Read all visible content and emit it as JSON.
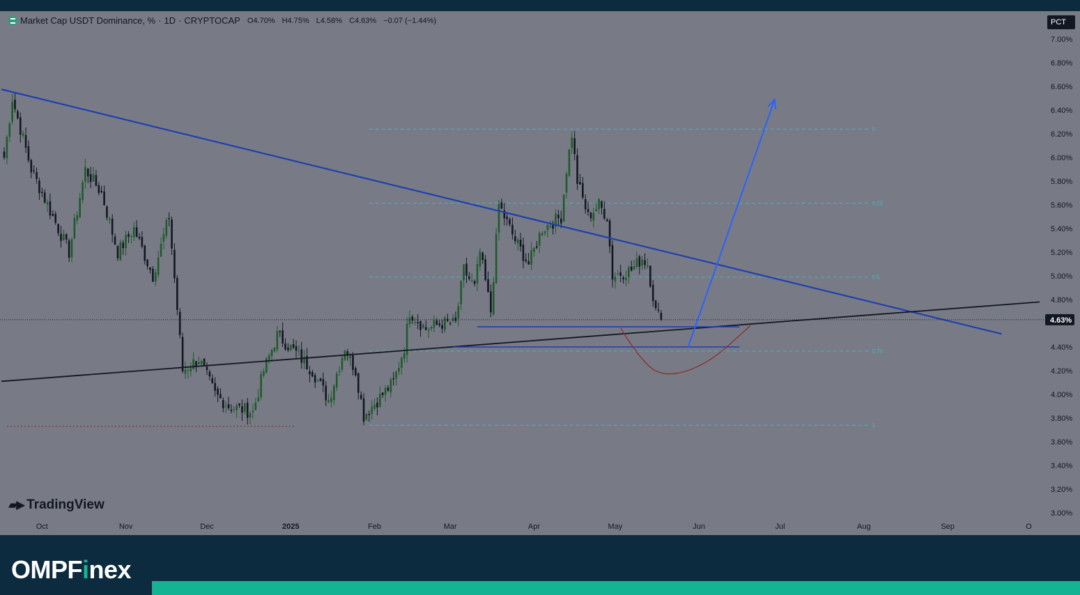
{
  "legend": {
    "symbol": "Market Cap USDT Dominance, %",
    "sep1": "·",
    "interval": "1D",
    "sep2": "·",
    "source": "CRYPTOCAP",
    "open": "O4.70%",
    "high": "H4.75%",
    "low": "L4.58%",
    "close": "C4.63%",
    "change": "−0.07 (−1.44%)"
  },
  "scale_button": "PCT",
  "watermark": "TradingView",
  "brand": {
    "part1": "OMPF",
    "part2": "i",
    "part3": "nex"
  },
  "colors": {
    "background": "#787b86",
    "up": "#1e5b2a",
    "down": "#131722",
    "trendline_blue": "#1e3fae",
    "trendline_black": "#131722",
    "fib": "#3fb6c8",
    "arrow": "#2962ff",
    "curve": "#8b2c2c",
    "support_dots": "#8b2c2c",
    "footer": "#0d2b3e",
    "accent": "#14b394"
  },
  "chart_data": {
    "type": "candlestick",
    "title": "Market Cap USDT Dominance, %",
    "interval": "1D",
    "ylim": [
      2.9,
      7.1
    ],
    "y_ticks": [
      "7.00%",
      "6.80%",
      "6.60%",
      "6.40%",
      "6.20%",
      "6.00%",
      "5.80%",
      "5.60%",
      "5.40%",
      "5.20%",
      "5.00%",
      "4.80%",
      "4.40%",
      "4.20%",
      "4.00%",
      "3.80%",
      "3.60%",
      "3.40%",
      "3.20%",
      "3.00%"
    ],
    "y_tick_values": [
      7.0,
      6.8,
      6.6,
      6.4,
      6.2,
      6.0,
      5.8,
      5.6,
      5.4,
      5.2,
      5.0,
      4.8,
      4.4,
      4.2,
      4.0,
      3.8,
      3.6,
      3.4,
      3.2,
      3.0
    ],
    "x_ticks": [
      "Oct",
      "Nov",
      "Dec",
      "2025",
      "Feb",
      "Mar",
      "Apr",
      "May",
      "Jun",
      "Jul",
      "Aug",
      "Sep",
      "O"
    ],
    "x_tick_days": [
      14,
      45,
      75,
      106,
      137,
      165,
      196,
      226,
      257,
      287,
      318,
      349,
      379
    ],
    "last_price": {
      "label": "4.63%",
      "value": 4.63
    },
    "keypoints": [
      [
        0,
        6.0
      ],
      [
        3,
        6.5
      ],
      [
        10,
        5.9
      ],
      [
        16,
        5.6
      ],
      [
        24,
        5.2
      ],
      [
        30,
        5.9
      ],
      [
        36,
        5.7
      ],
      [
        42,
        5.2
      ],
      [
        48,
        5.4
      ],
      [
        55,
        5.0
      ],
      [
        61,
        5.5
      ],
      [
        66,
        4.2
      ],
      [
        72,
        4.3
      ],
      [
        78,
        4.0
      ],
      [
        83,
        3.9
      ],
      [
        92,
        3.85
      ],
      [
        96,
        4.2
      ],
      [
        101,
        4.5
      ],
      [
        108,
        4.35
      ],
      [
        114,
        4.2
      ],
      [
        120,
        3.95
      ],
      [
        126,
        4.4
      ],
      [
        130,
        4.2
      ],
      [
        133,
        3.82
      ],
      [
        140,
        4.0
      ],
      [
        144,
        4.1
      ],
      [
        148,
        4.4
      ],
      [
        150,
        4.7
      ],
      [
        156,
        4.55
      ],
      [
        162,
        4.6
      ],
      [
        167,
        4.6
      ],
      [
        170,
        5.05
      ],
      [
        174,
        4.9
      ],
      [
        176,
        5.2
      ],
      [
        180,
        4.7
      ],
      [
        183,
        5.6
      ],
      [
        189,
        5.3
      ],
      [
        194,
        5.1
      ],
      [
        199,
        5.4
      ],
      [
        206,
        5.5
      ],
      [
        208,
        5.9
      ],
      [
        210,
        6.2
      ],
      [
        212,
        5.8
      ],
      [
        216,
        5.5
      ],
      [
        220,
        5.6
      ],
      [
        223,
        5.5
      ],
      [
        225,
        5.0
      ],
      [
        232,
        5.05
      ],
      [
        236,
        5.15
      ],
      [
        238,
        5.1
      ],
      [
        241,
        4.7
      ],
      [
        243,
        4.63
      ]
    ],
    "trendlines": [
      {
        "name": "descending-resistance",
        "from": [
          -1,
          6.575
        ],
        "to": [
          369,
          4.51
        ]
      },
      {
        "name": "ascending-support",
        "from": [
          -1,
          4.11
        ],
        "to": [
          383,
          4.78
        ]
      }
    ],
    "horizontal_levels": [
      {
        "name": "range-top",
        "value": 4.57,
        "from_day": 175,
        "to_day": 272
      },
      {
        "name": "range-bottom",
        "value": 4.4,
        "from_day": 166,
        "to_day": 272
      },
      {
        "name": "prior-low",
        "value": 3.73,
        "from_day": 1,
        "to_day": 108
      }
    ],
    "fib_levels": [
      {
        "label": "0",
        "value": 6.24
      },
      {
        "label": "0.25",
        "value": 5.615
      },
      {
        "label": "0.5",
        "value": 4.99
      },
      {
        "label": "0.75",
        "value": 4.365
      },
      {
        "label": "1",
        "value": 3.74
      }
    ],
    "fib_range_days": [
      135,
      320
    ],
    "projection_arrow": {
      "from": [
        253,
        4.4
      ],
      "to": [
        285,
        6.49
      ]
    },
    "projection_curve": [
      [
        228,
        4.56
      ],
      [
        235,
        4.3
      ],
      [
        244,
        4.14
      ],
      [
        260,
        4.25
      ],
      [
        276,
        4.58
      ]
    ]
  }
}
